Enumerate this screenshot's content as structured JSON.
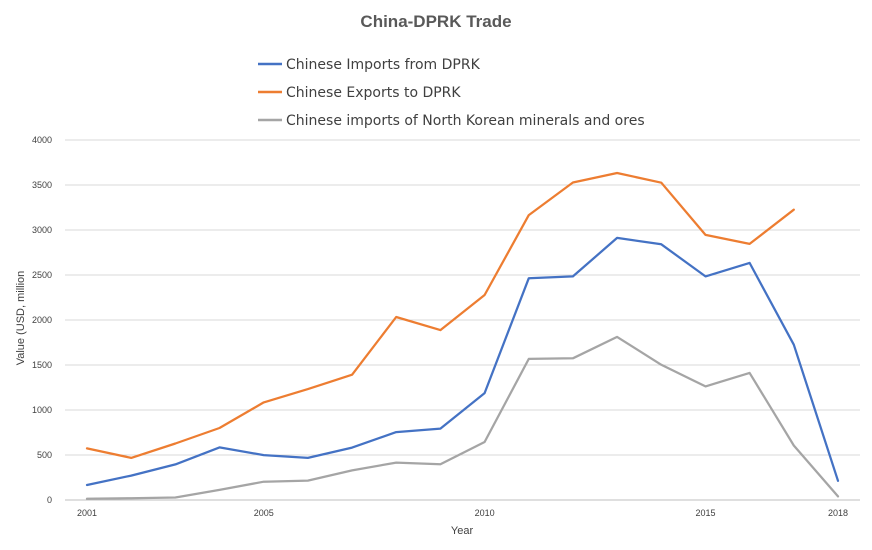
{
  "chart_data": {
    "type": "line",
    "title": "China-DPRK Trade",
    "xlabel": "Year",
    "ylabel": "Value (USD, million",
    "xlim": [
      2001,
      2018
    ],
    "ylim": [
      0,
      4000
    ],
    "x_ticks": [
      2001,
      2005,
      2010,
      2015,
      2018
    ],
    "y_ticks": [
      0,
      500,
      1000,
      1500,
      2000,
      2500,
      3000,
      3500,
      4000
    ],
    "grid": "horizontal",
    "legend_position": "top",
    "series": [
      {
        "name": "Chinese Imports from DPRK",
        "color": "#4472C4",
        "x": [
          2001,
          2002,
          2003,
          2004,
          2005,
          2006,
          2007,
          2008,
          2009,
          2010,
          2011,
          2012,
          2013,
          2014,
          2015,
          2016,
          2017,
          2018
        ],
        "values": [
          167,
          271,
          395,
          585,
          499,
          468,
          582,
          754,
          793,
          1188,
          2464,
          2485,
          2912,
          2841,
          2484,
          2634,
          1726,
          213
        ]
      },
      {
        "name": "Chinese Exports to DPRK",
        "color": "#ED7D31",
        "x": [
          2001,
          2002,
          2003,
          2004,
          2005,
          2006,
          2007,
          2008,
          2009,
          2010,
          2011,
          2012,
          2013,
          2014,
          2015,
          2016,
          2017
        ],
        "values": [
          573,
          468,
          628,
          800,
          1085,
          1232,
          1392,
          2033,
          1888,
          2278,
          3165,
          3528,
          3633,
          3526,
          2945,
          2846,
          3226
        ]
      },
      {
        "name": "Chinese imports of North Korean minerals and ores",
        "color": "#A5A5A5",
        "x": [
          2001,
          2002,
          2003,
          2004,
          2005,
          2006,
          2007,
          2008,
          2009,
          2010,
          2011,
          2012,
          2013,
          2014,
          2015,
          2016,
          2017,
          2018
        ],
        "values": [
          13,
          20,
          28,
          112,
          203,
          215,
          329,
          416,
          397,
          644,
          1568,
          1575,
          1812,
          1502,
          1262,
          1412,
          606,
          40
        ]
      }
    ]
  }
}
